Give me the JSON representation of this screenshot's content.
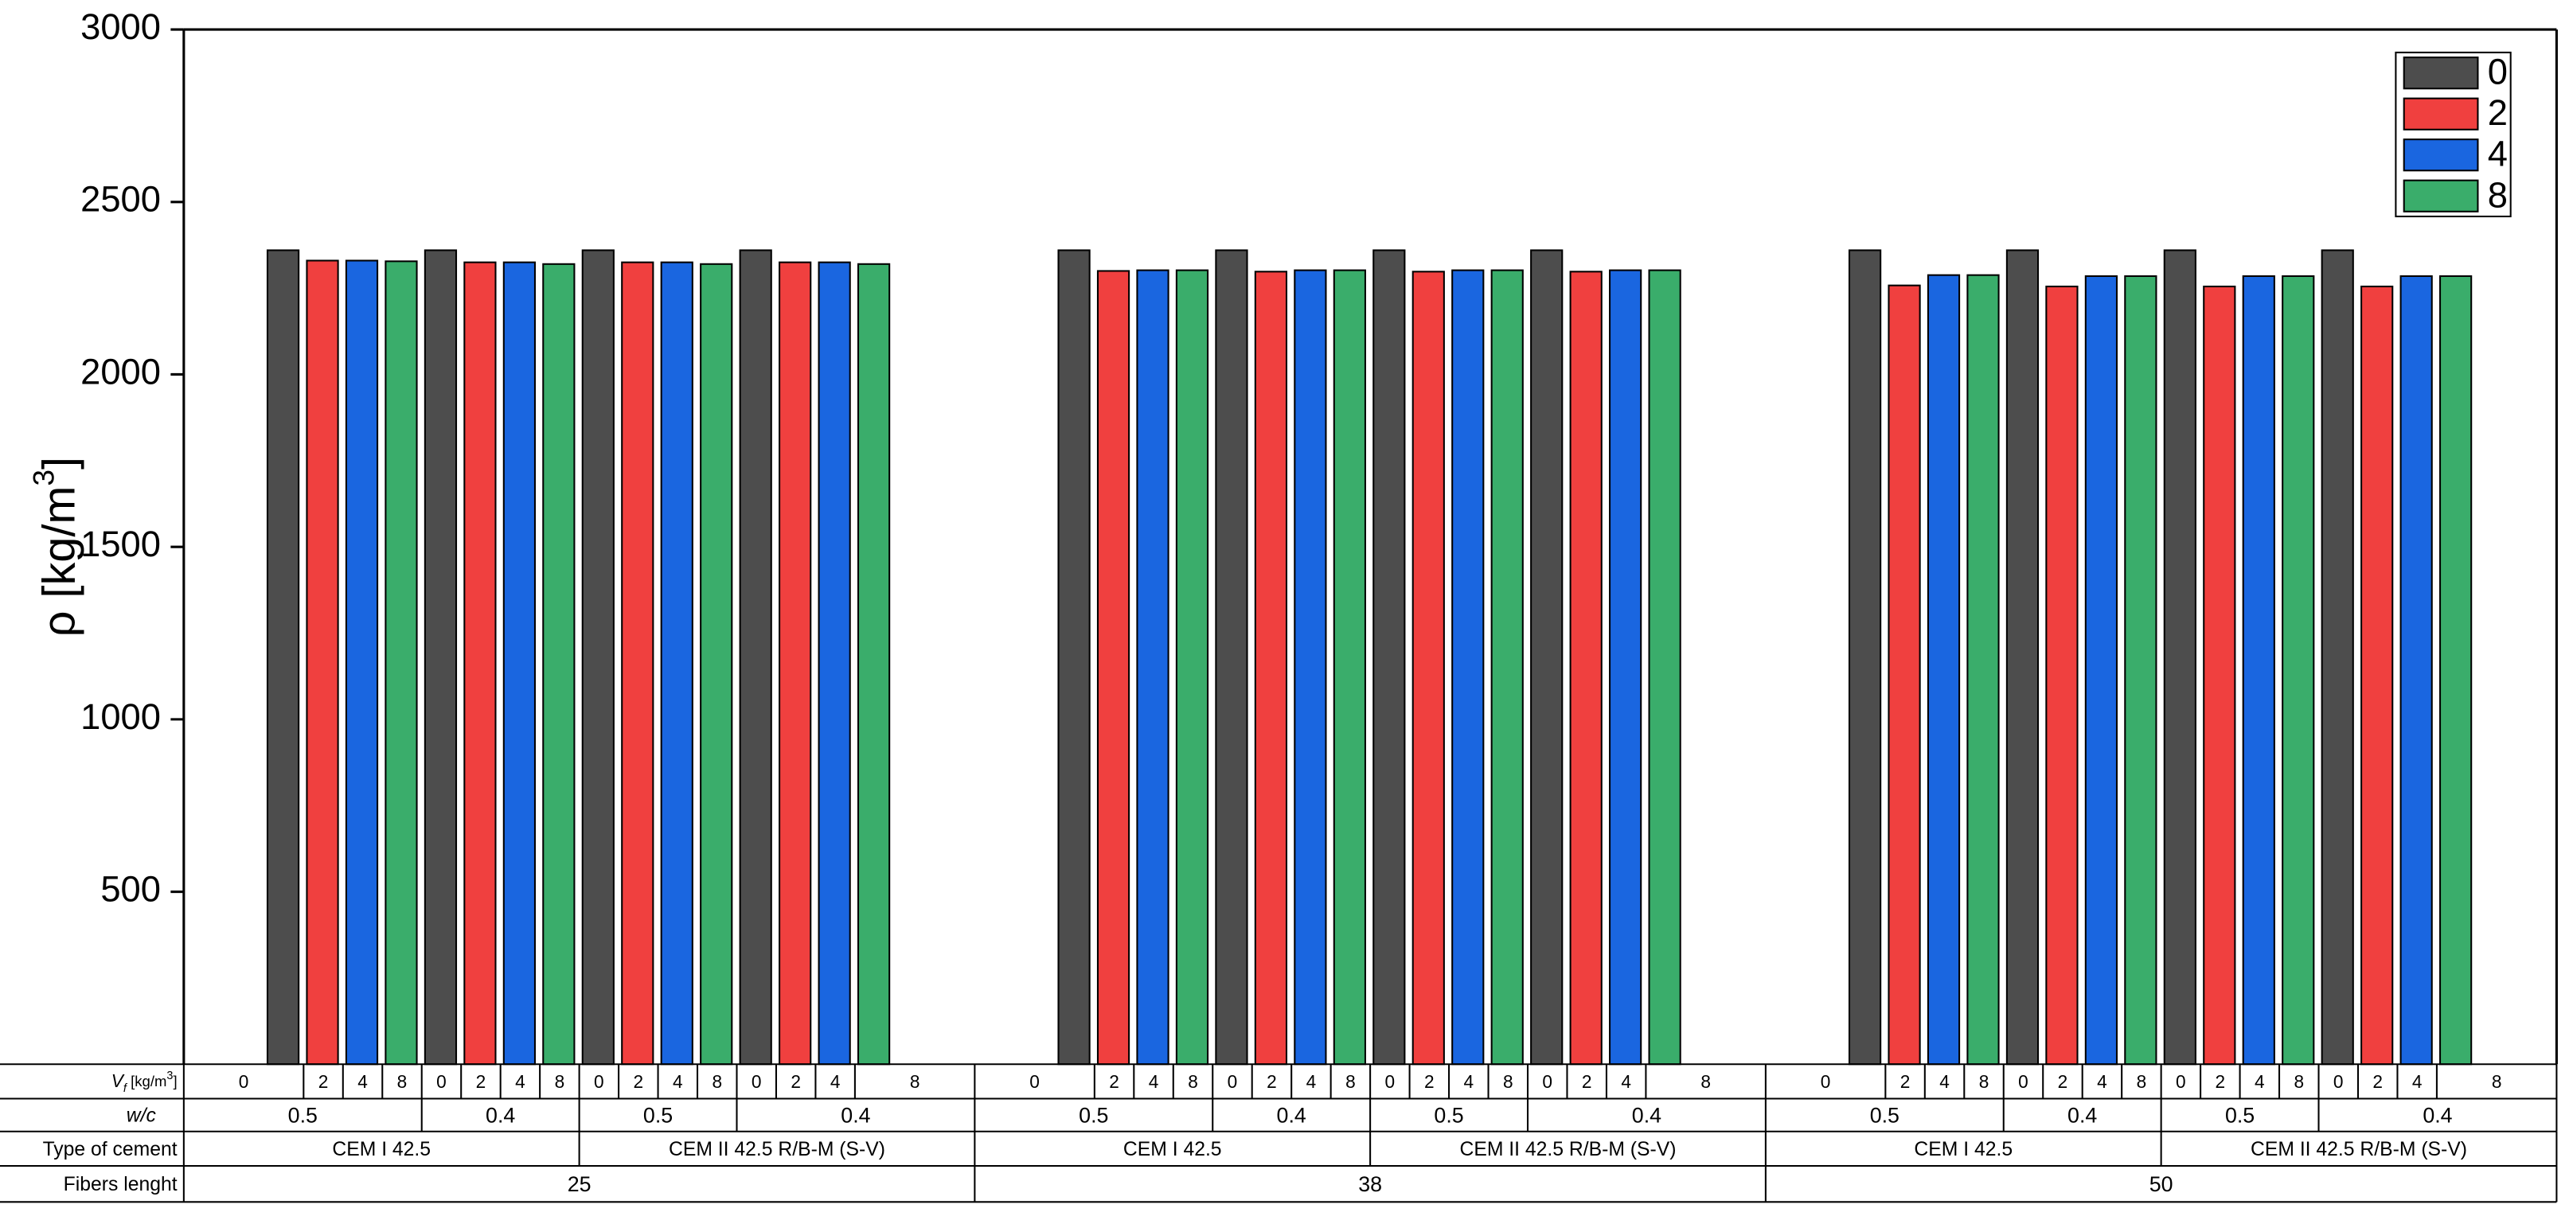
{
  "chart_data": {
    "type": "bar",
    "ylabel": [
      "ρ [kg/m",
      "3",
      "]"
    ],
    "ylim": [
      0,
      3000
    ],
    "yticks": [
      500,
      1000,
      1500,
      2000,
      2500,
      3000
    ],
    "legend": "upper right",
    "series": [
      {
        "name": "0",
        "color": "#4d4d4d",
        "values": [
          2360,
          2360,
          2360,
          2360,
          2360,
          2360,
          2360,
          2360,
          2360,
          2360,
          2360,
          2360
        ]
      },
      {
        "name": "2",
        "color": "#f0403f",
        "values": [
          2330,
          2325,
          2325,
          2325,
          2300,
          2298,
          2298,
          2298,
          2258,
          2255,
          2255,
          2255
        ]
      },
      {
        "name": "4",
        "color": "#1a66e0",
        "values": [
          2330,
          2325,
          2325,
          2325,
          2302,
          2302,
          2302,
          2302,
          2288,
          2285,
          2285,
          2285
        ]
      },
      {
        "name": "8",
        "color": "#3aad6b",
        "values": [
          2328,
          2320,
          2320,
          2320,
          2302,
          2302,
          2302,
          2302,
          2288,
          2285,
          2285,
          2285
        ]
      }
    ],
    "table": {
      "vf_label": [
        "V",
        "f",
        " [kg/m",
        "3",
        "]"
      ],
      "row_labels": [
        "w/c",
        "Type of cement",
        "Fibers lenght"
      ],
      "wc": [
        "0.5",
        "0.4",
        "0.5",
        "0.4",
        "0.5",
        "0.4",
        "0.5",
        "0.4",
        "0.5",
        "0.4",
        "0.5",
        "0.4"
      ],
      "cement": [
        "CEM I 42.5",
        "CEM II 42.5 R/B-M (S-V)",
        "CEM I 42.5",
        "CEM II 42.5 R/B-M (S-V)",
        "CEM I 42.5",
        "CEM II 42.5 R/B-M (S-V)"
      ],
      "fiber_length": [
        "25",
        "38",
        "50"
      ]
    }
  }
}
